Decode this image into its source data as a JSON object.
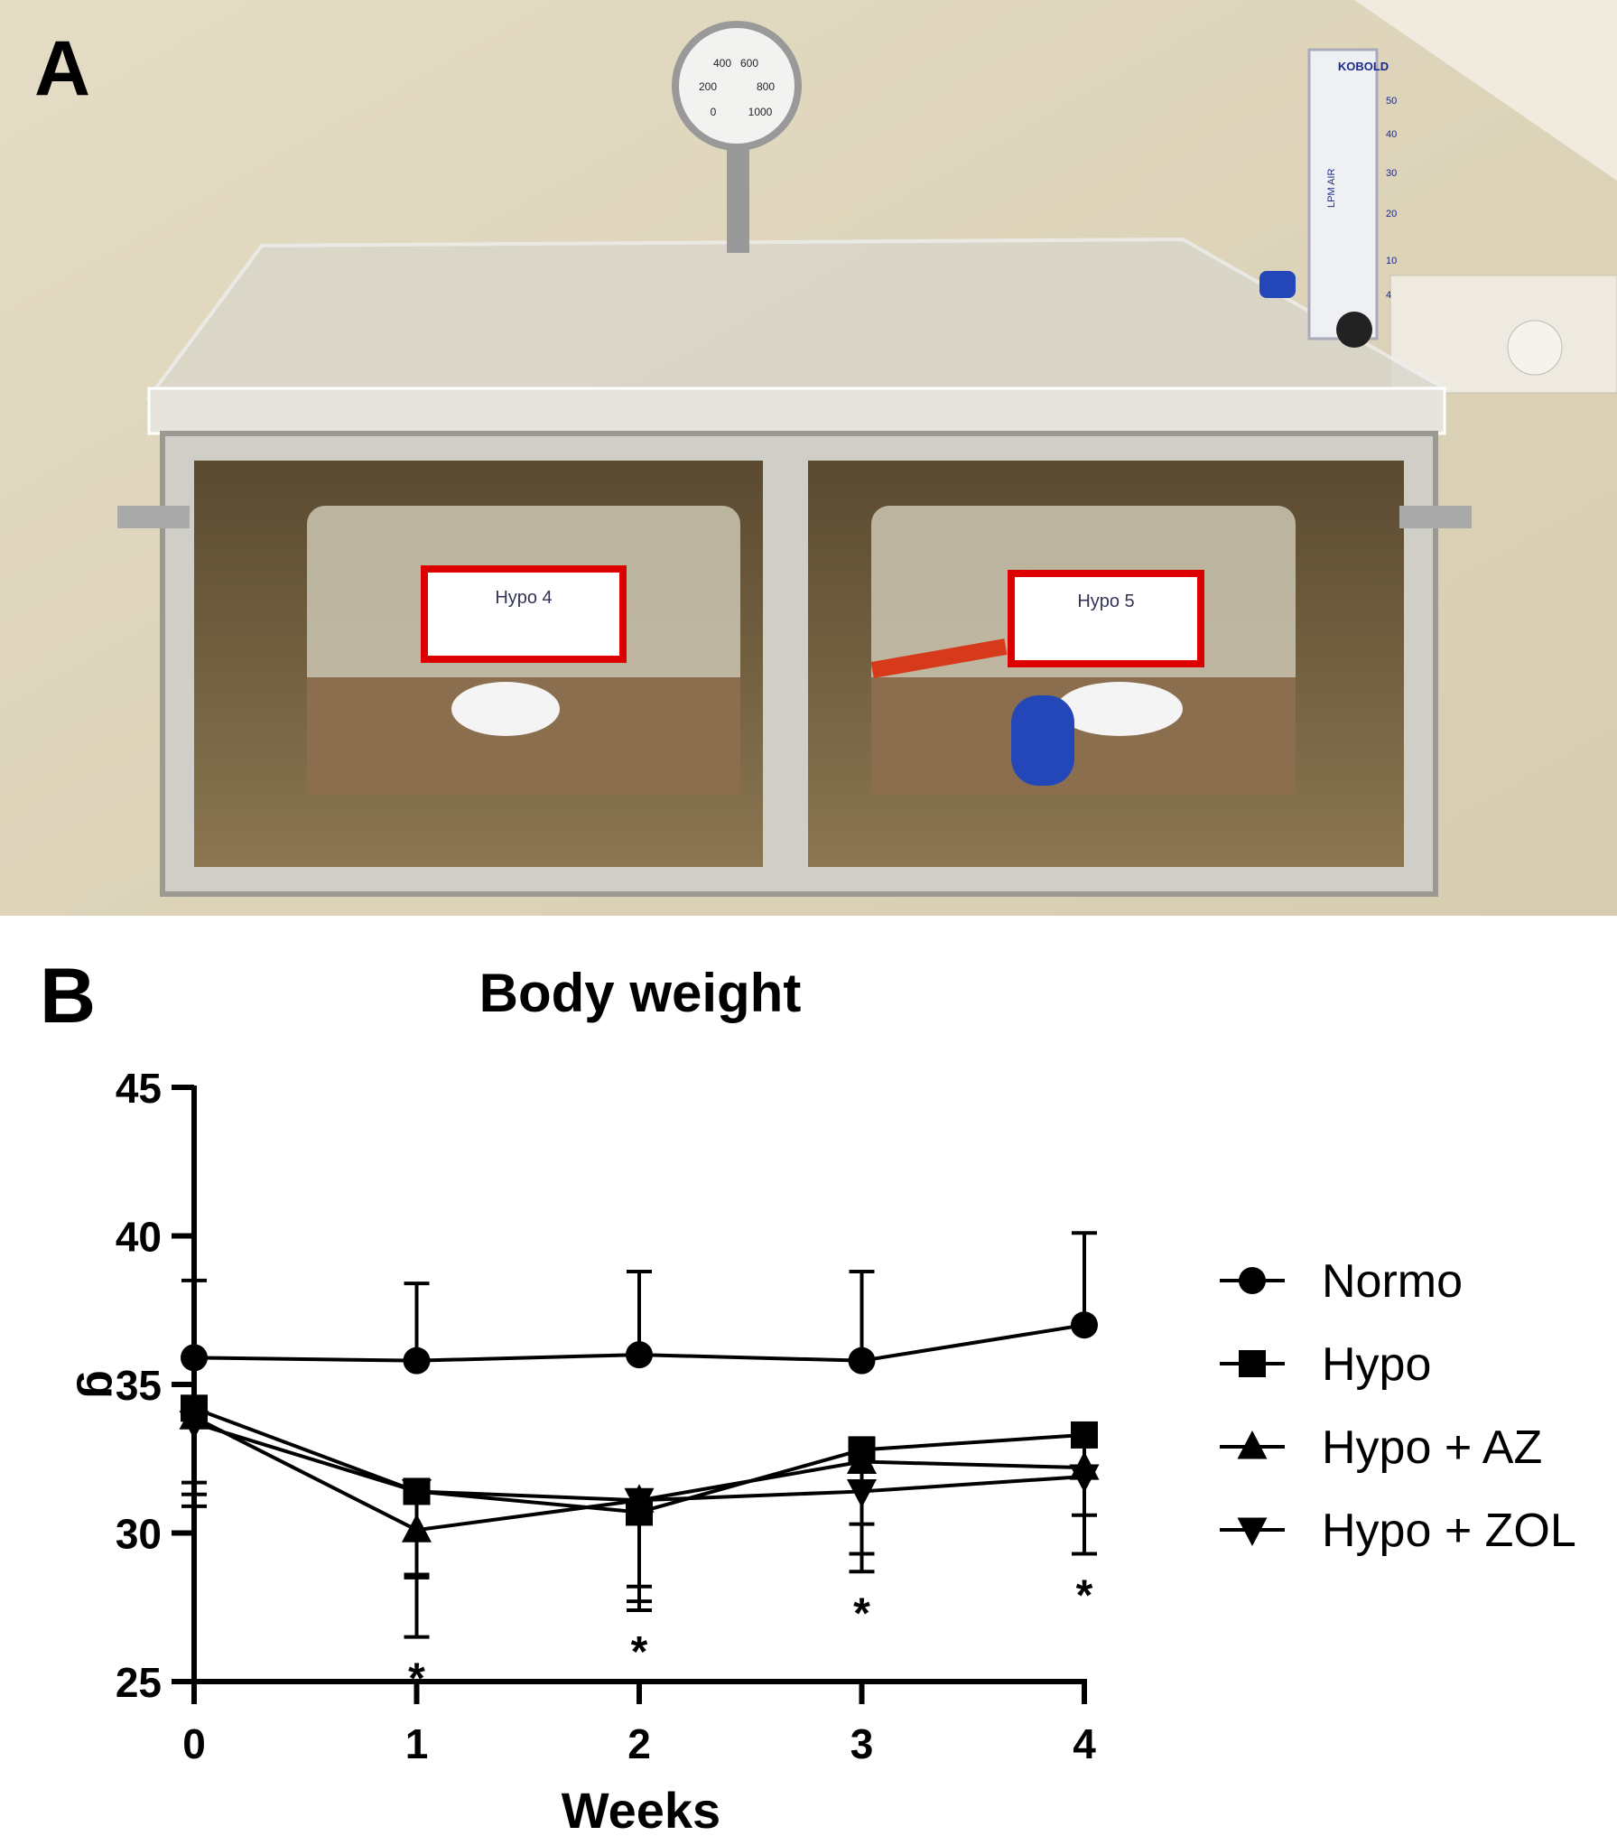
{
  "panels": {
    "a_label": "A",
    "b_label": "B"
  },
  "photo": {
    "gauge_labels": [
      "0",
      "200",
      "400",
      "600",
      "800",
      "1000"
    ],
    "flowmeter_brand": "KOBOLD",
    "flowmeter_unit": "LPM AIR",
    "flowmeter_ticks": [
      "50",
      "40",
      "30",
      "20",
      "10",
      "4"
    ],
    "cage_labels": [
      "Hypo 4",
      "Hypo 5"
    ]
  },
  "chart_data": {
    "type": "line",
    "title": "Body weight",
    "xlabel": "Weeks",
    "ylabel": "g",
    "x": [
      0,
      1,
      2,
      3,
      4
    ],
    "xticks": [
      "0",
      "1",
      "2",
      "3",
      "4"
    ],
    "yticks": [
      "25",
      "30",
      "35",
      "40",
      "45"
    ],
    "ylim": [
      25,
      45
    ],
    "xlim": [
      0,
      4
    ],
    "grid": false,
    "legend_position": "right",
    "series": [
      {
        "name": "Normo",
        "marker": "circle",
        "values": [
          35.9,
          35.8,
          36.0,
          35.8,
          37.0
        ],
        "error_upper": [
          38.5,
          38.4,
          38.8,
          38.8,
          40.1
        ]
      },
      {
        "name": "Hypo",
        "marker": "square",
        "values": [
          34.2,
          31.4,
          30.7,
          32.8,
          33.3
        ],
        "error_lower": [
          31.7,
          28.6,
          28.2,
          30.3,
          30.6
        ]
      },
      {
        "name": "Hypo + AZ",
        "marker": "triangle-up",
        "values": [
          33.9,
          30.1,
          31.1,
          32.4,
          32.2
        ],
        "error_lower": [
          31.3,
          26.5,
          27.4,
          28.7,
          29.3
        ]
      },
      {
        "name": "Hypo + ZOL",
        "marker": "triangle-down",
        "values": [
          33.7,
          31.4,
          31.1,
          31.4,
          31.9
        ],
        "error_lower": [
          30.9,
          28.5,
          27.7,
          29.3,
          29.3
        ]
      }
    ],
    "annotations": [
      {
        "x": 1,
        "text": "*"
      },
      {
        "x": 2,
        "text": "*"
      },
      {
        "x": 3,
        "text": "*"
      },
      {
        "x": 4,
        "text": "*"
      }
    ]
  }
}
